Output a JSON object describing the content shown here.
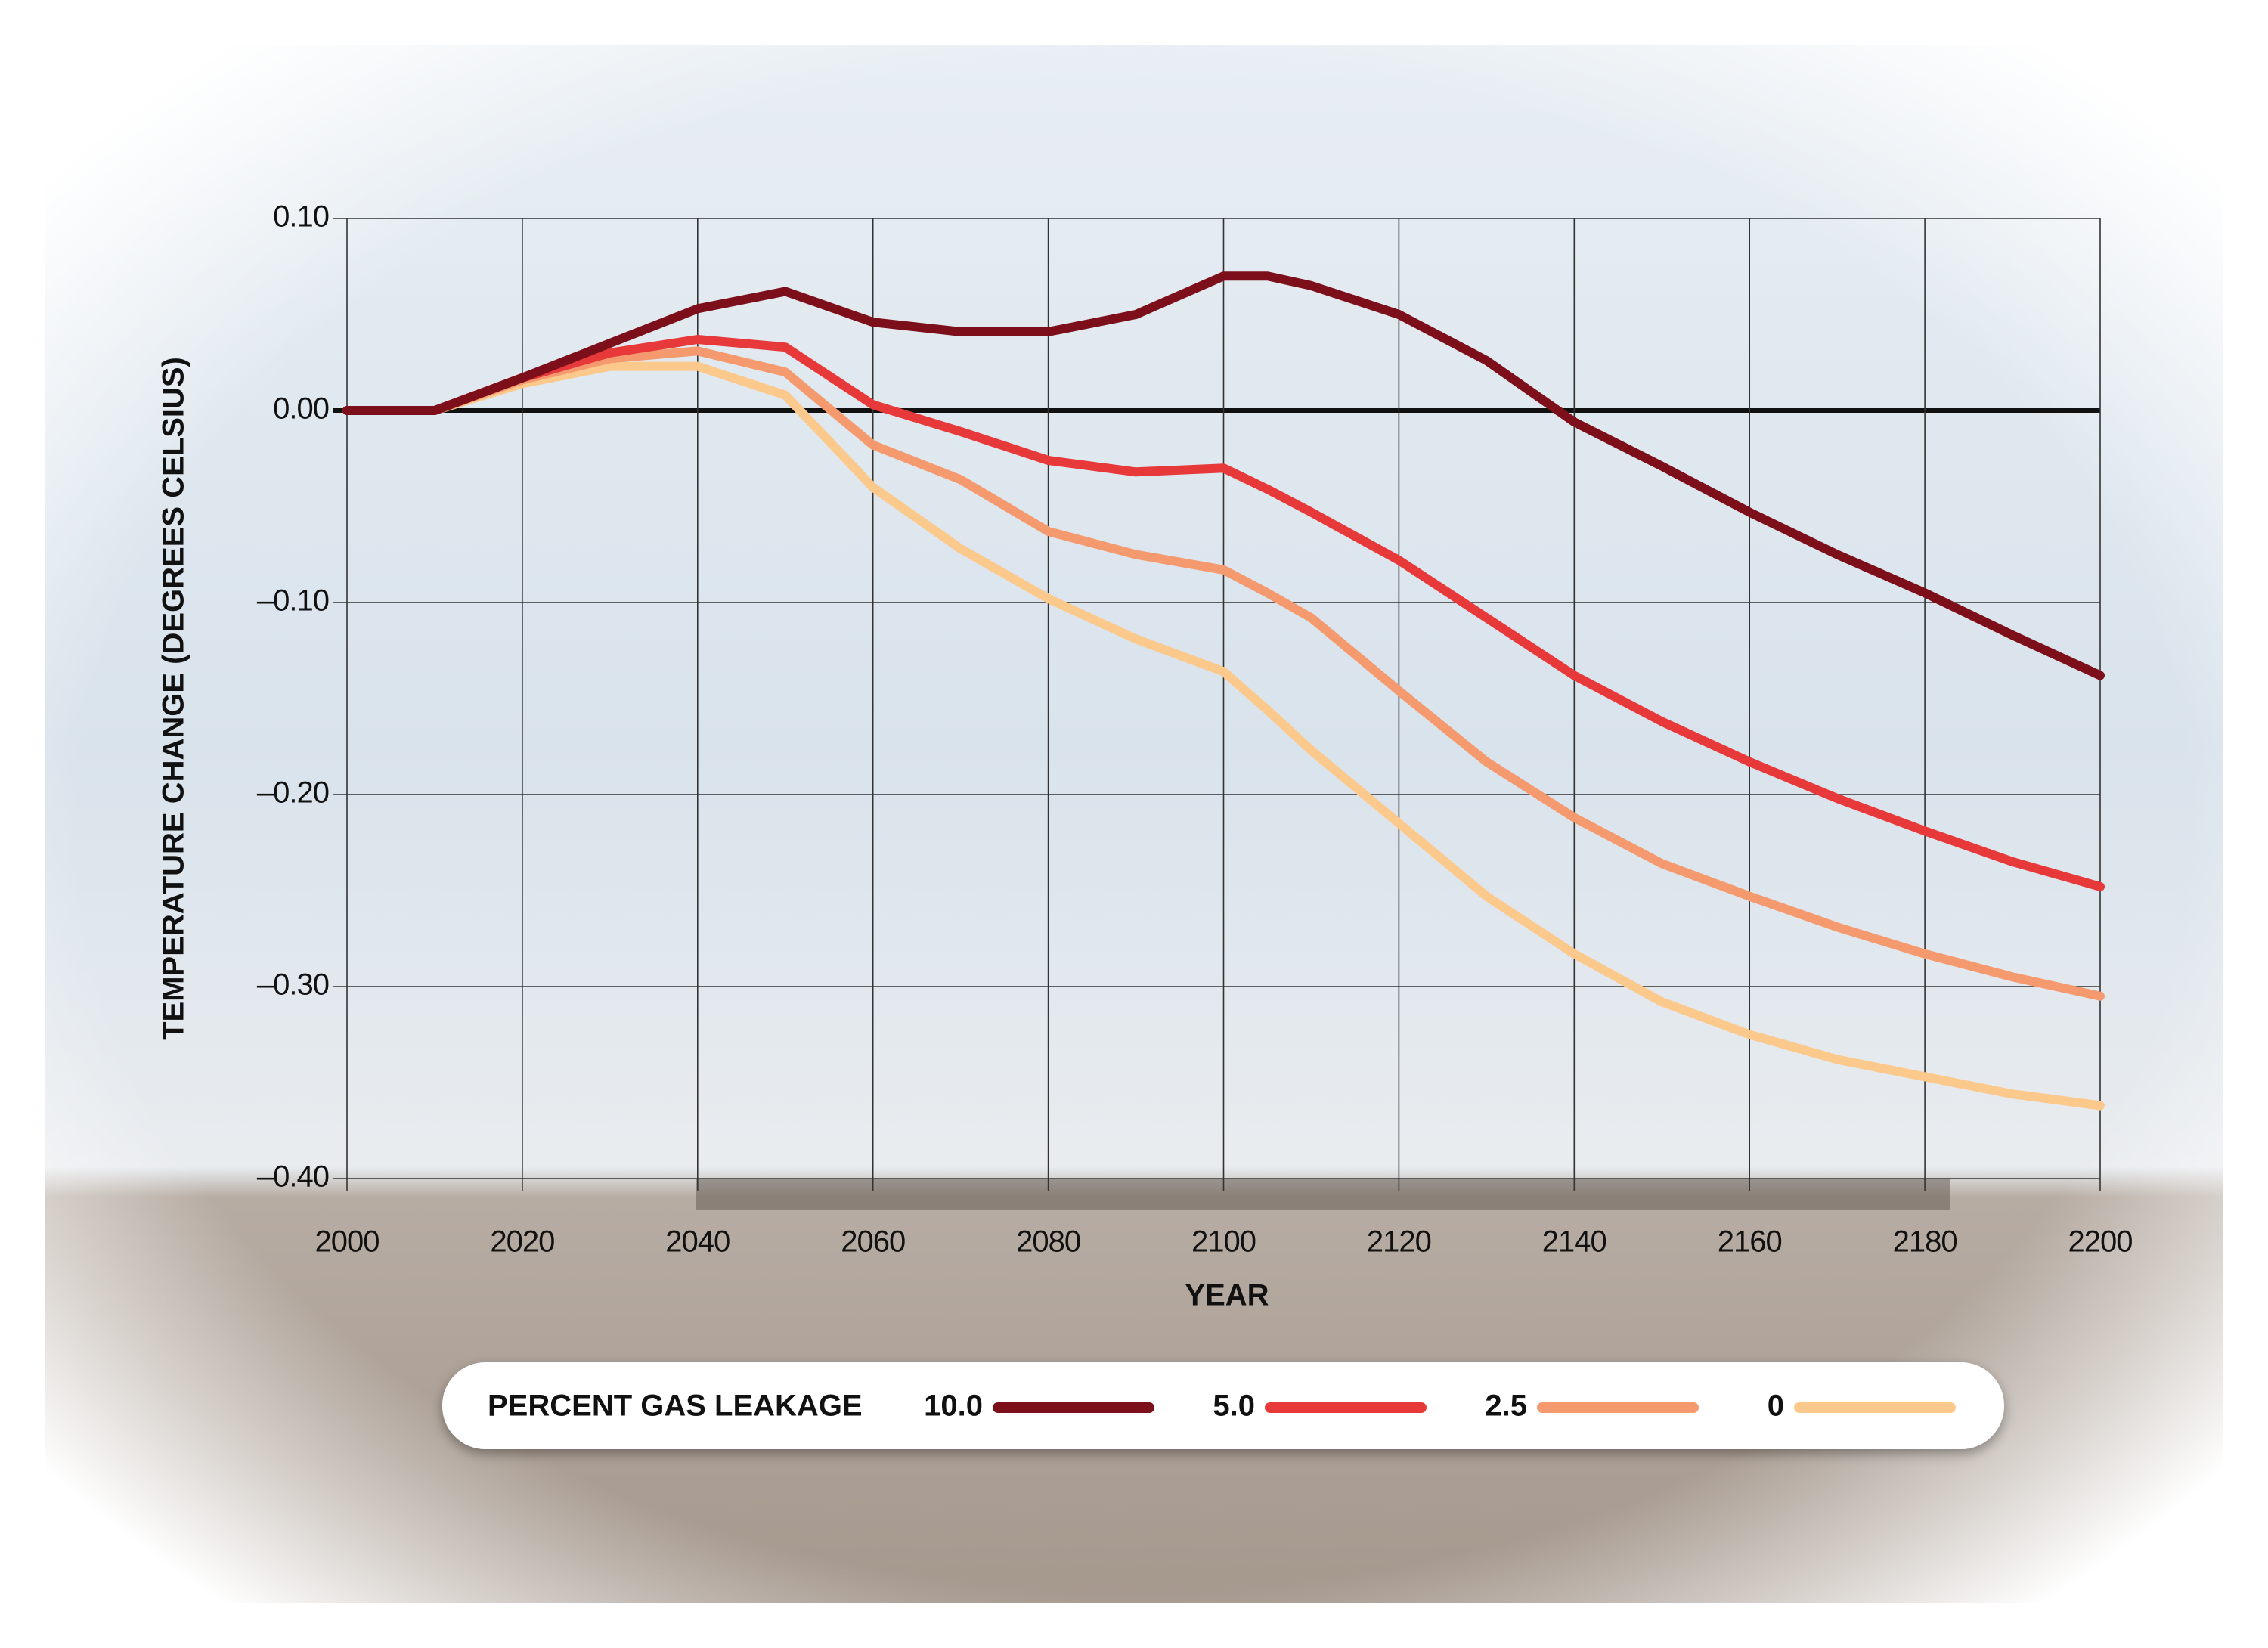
{
  "chart_data": {
    "type": "line",
    "x_label": "YEAR",
    "y_label": "TEMPERATURE  CHANGE (DEGREES CELSIUS)",
    "legend_title": "PERCENT GAS LEAKAGE",
    "legend_position": "bottom",
    "grid": true,
    "x": [
      2000,
      2010,
      2020,
      2030,
      2040,
      2050,
      2060,
      2070,
      2080,
      2090,
      2100,
      2105,
      2110,
      2120,
      2130,
      2140,
      2150,
      2160,
      2170,
      2180,
      2190,
      2200
    ],
    "xlim": [
      2000,
      2200
    ],
    "xticks": [
      2000,
      2020,
      2040,
      2060,
      2080,
      2100,
      2120,
      2140,
      2160,
      2180,
      2200
    ],
    "ylim": [
      -0.4,
      0.1
    ],
    "yticks": [
      {
        "value": 0.1,
        "label": "0.10"
      },
      {
        "value": 0,
        "label": "0.00"
      },
      {
        "value": -0.1,
        "label": "–0.10"
      },
      {
        "value": -0.2,
        "label": "–0.20"
      },
      {
        "value": -0.3,
        "label": "–0.30"
      },
      {
        "value": -0.4,
        "label": "–0.40"
      }
    ],
    "series": [
      {
        "name": "10.0",
        "color": "#7d0f1a",
        "values": [
          0,
          0,
          0.017,
          0.035,
          0.053,
          0.062,
          0.046,
          0.041,
          0.041,
          0.05,
          0.07,
          0.07,
          0.065,
          0.05,
          0.026,
          -0.006,
          -0.029,
          -0.053,
          -0.075,
          -0.095,
          -0.117,
          -0.138
        ]
      },
      {
        "name": "5.0",
        "color": "#e8393a",
        "values": [
          0,
          0,
          0.017,
          0.03,
          0.037,
          0.033,
          0.003,
          -0.011,
          -0.026,
          -0.032,
          -0.03,
          -0.041,
          -0.053,
          -0.078,
          -0.108,
          -0.138,
          -0.162,
          -0.183,
          -0.202,
          -0.219,
          -0.235,
          -0.248
        ]
      },
      {
        "name": "2.5",
        "color": "#f59a6e",
        "values": [
          0,
          0,
          0.016,
          0.027,
          0.031,
          0.02,
          -0.018,
          -0.036,
          -0.063,
          -0.075,
          -0.083,
          -0.095,
          -0.108,
          -0.146,
          -0.183,
          -0.212,
          -0.236,
          -0.253,
          -0.269,
          -0.283,
          -0.295,
          -0.305
        ]
      },
      {
        "name": "0",
        "color": "#fcc98c",
        "values": [
          0,
          0,
          0.014,
          0.023,
          0.023,
          0.008,
          -0.04,
          -0.072,
          -0.098,
          -0.119,
          -0.136,
          -0.156,
          -0.177,
          -0.215,
          -0.253,
          -0.283,
          -0.308,
          -0.325,
          -0.338,
          -0.347,
          -0.356,
          -0.362
        ]
      }
    ]
  }
}
